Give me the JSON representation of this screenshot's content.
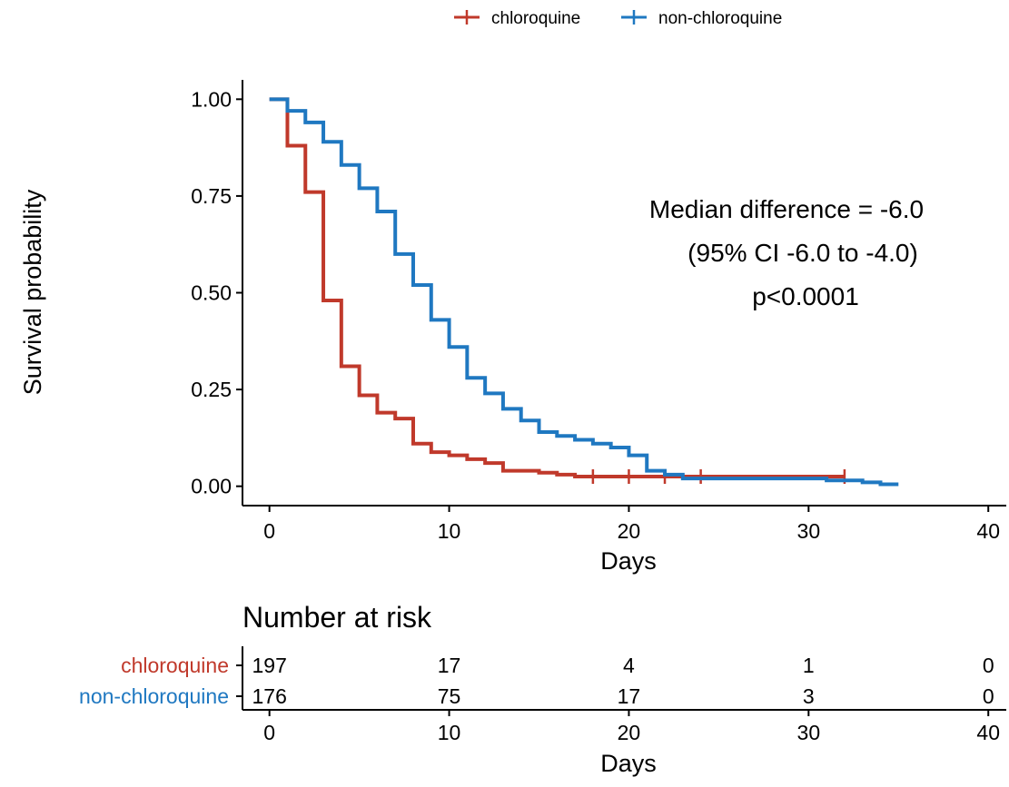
{
  "chart_data": {
    "type": "line",
    "step": true,
    "xlabel": "Days",
    "ylabel": "Survival probability",
    "xlim": [
      -1.5,
      41
    ],
    "ylim": [
      -0.05,
      1.05
    ],
    "xticks": [
      0,
      10,
      20,
      30,
      40
    ],
    "yticks": [
      0.0,
      0.25,
      0.5,
      0.75,
      1.0
    ],
    "ytick_labels": [
      "0.00",
      "0.25",
      "0.50",
      "0.75",
      "1.00"
    ],
    "grid": false,
    "legend_position": "top",
    "annotation": [
      "Median difference = -6.0",
      "(95% CI -6.0 to -4.0)",
      "p<0.0001"
    ],
    "series": [
      {
        "name": "chloroquine",
        "color": "#c0392b",
        "points": [
          [
            0,
            1.0
          ],
          [
            1,
            0.88
          ],
          [
            2,
            0.76
          ],
          [
            3,
            0.48
          ],
          [
            4,
            0.31
          ],
          [
            5,
            0.235
          ],
          [
            6,
            0.19
          ],
          [
            7,
            0.175
          ],
          [
            8,
            0.11
          ],
          [
            9,
            0.088
          ],
          [
            10,
            0.08
          ],
          [
            11,
            0.07
          ],
          [
            12,
            0.06
          ],
          [
            13,
            0.04
          ],
          [
            15,
            0.035
          ],
          [
            16,
            0.03
          ],
          [
            17,
            0.025
          ],
          [
            32,
            0.025
          ]
        ],
        "censor_x": [
          18,
          20,
          22,
          24,
          32
        ]
      },
      {
        "name": "non-chloroquine",
        "color": "#1f78c1",
        "points": [
          [
            0,
            1.0
          ],
          [
            1,
            0.97
          ],
          [
            2,
            0.94
          ],
          [
            3,
            0.89
          ],
          [
            4,
            0.83
          ],
          [
            5,
            0.77
          ],
          [
            6,
            0.71
          ],
          [
            7,
            0.6
          ],
          [
            8,
            0.52
          ],
          [
            9,
            0.43
          ],
          [
            10,
            0.36
          ],
          [
            11,
            0.28
          ],
          [
            12,
            0.24
          ],
          [
            13,
            0.2
          ],
          [
            14,
            0.17
          ],
          [
            15,
            0.14
          ],
          [
            16,
            0.13
          ],
          [
            17,
            0.12
          ],
          [
            18,
            0.11
          ],
          [
            19,
            0.1
          ],
          [
            20,
            0.08
          ],
          [
            21,
            0.04
          ],
          [
            22,
            0.03
          ],
          [
            23,
            0.02
          ],
          [
            31,
            0.015
          ],
          [
            33,
            0.01
          ],
          [
            34,
            0.005
          ],
          [
            35,
            0.005
          ]
        ],
        "censor_x": []
      }
    ],
    "risk_table": {
      "title": "Number at risk",
      "xlabel": "Days",
      "times": [
        0,
        10,
        20,
        30,
        40
      ],
      "rows": [
        {
          "name": "chloroquine",
          "color": "#c0392b",
          "values": [
            "197",
            "17",
            "4",
            "1",
            "0"
          ]
        },
        {
          "name": "non-chloroquine",
          "color": "#1f78c1",
          "values": [
            "176",
            "75",
            "17",
            "3",
            "0"
          ]
        }
      ]
    }
  }
}
